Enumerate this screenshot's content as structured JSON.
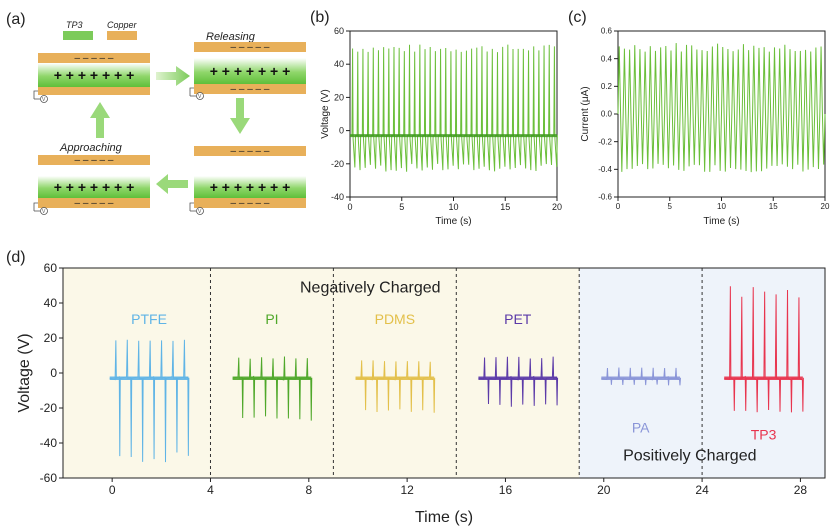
{
  "panel_labels": {
    "a": "(a)",
    "b": "(b)",
    "c": "(c)",
    "d": "(d)"
  },
  "schematic": {
    "legend": [
      {
        "label": "TP3",
        "color": "#7ccb5a"
      },
      {
        "label": "Copper",
        "color": "#e8b05a"
      }
    ],
    "states": {
      "releasing": "Releasing",
      "approaching": "Approaching"
    },
    "plus_row": "+ + + + + + +",
    "minus_row": "–   –   –   –   –",
    "meter_symbol": "V"
  },
  "chart_data": [
    {
      "id": "b",
      "type": "line",
      "xlabel": "Time (s)",
      "ylabel": "Voltage (V)",
      "xlim": [
        0,
        20
      ],
      "ylim": [
        -40,
        60
      ],
      "xticks": [
        0,
        5,
        10,
        15,
        20
      ],
      "yticks": [
        -40,
        -20,
        0,
        20,
        40,
        60
      ],
      "color": "#6bbf3a",
      "baseline": -3,
      "peaks_per_s": 2,
      "pulse_count": 40,
      "peak_positive": [
        47,
        52
      ],
      "peak_negative": [
        -25,
        -20
      ]
    },
    {
      "id": "c",
      "type": "line",
      "xlabel": "Time (s)",
      "ylabel": "Current (μA)",
      "xlim": [
        0,
        20
      ],
      "ylim": [
        -0.6,
        0.6
      ],
      "xticks": [
        0,
        5,
        10,
        15,
        20
      ],
      "yticks": [
        -0.6,
        -0.4,
        -0.2,
        0.0,
        0.2,
        0.4,
        0.6
      ],
      "ytick_labels": [
        "-0.6",
        "-0.4",
        "-0.2",
        "0.0",
        "0.2",
        "0.4",
        "0.6"
      ],
      "color": "#6bbf3a",
      "peaks_per_s": 2,
      "pulse_count": 40,
      "peak_positive": [
        0.45,
        0.52
      ],
      "peak_negative": [
        -0.42,
        -0.36
      ]
    },
    {
      "id": "d",
      "type": "line",
      "xlabel": "Time (s)",
      "ylabel": "Voltage (V)",
      "xlim": [
        -2,
        29
      ],
      "ylim": [
        -60,
        60
      ],
      "xticks": [
        0,
        4,
        8,
        12,
        16,
        20,
        24,
        28
      ],
      "yticks": [
        -60,
        -40,
        -20,
        0,
        20,
        40,
        60
      ],
      "dividers_x": [
        4,
        9,
        14,
        19,
        24
      ],
      "regions": [
        {
          "label": "Negatively Charged",
          "x": [
            -2,
            19
          ],
          "color": "#fbf8e8"
        },
        {
          "label": "Positively Charged",
          "x": [
            19,
            29
          ],
          "color": "#eef3fa"
        }
      ],
      "series": [
        {
          "name": "PTFE",
          "color": "#5fb4e6",
          "x": [
            0,
            3
          ],
          "baseline": -3,
          "pulses": 7,
          "pos": 19,
          "neg": -50
        },
        {
          "name": "PI",
          "color": "#4fa82a",
          "x": [
            5,
            8
          ],
          "baseline": -3,
          "pulses": 7,
          "pos": 9,
          "neg": -27
        },
        {
          "name": "PDMS",
          "color": "#e3c04a",
          "x": [
            10,
            13
          ],
          "baseline": -3,
          "pulses": 7,
          "pos": 7,
          "neg": -23
        },
        {
          "name": "PET",
          "color": "#5b3aa8",
          "x": [
            15,
            18
          ],
          "baseline": -3,
          "pulses": 7,
          "pos": 9,
          "neg": -19
        },
        {
          "name": "PA",
          "color": "#8a95d8",
          "x": [
            20,
            23
          ],
          "baseline": -3,
          "pulses": 7,
          "pos": 3,
          "neg": -7
        },
        {
          "name": "TP3",
          "color": "#e8344e",
          "x": [
            25,
            28
          ],
          "baseline": -3,
          "pulses": 7,
          "pos": 48,
          "neg": -23
        }
      ]
    }
  ]
}
